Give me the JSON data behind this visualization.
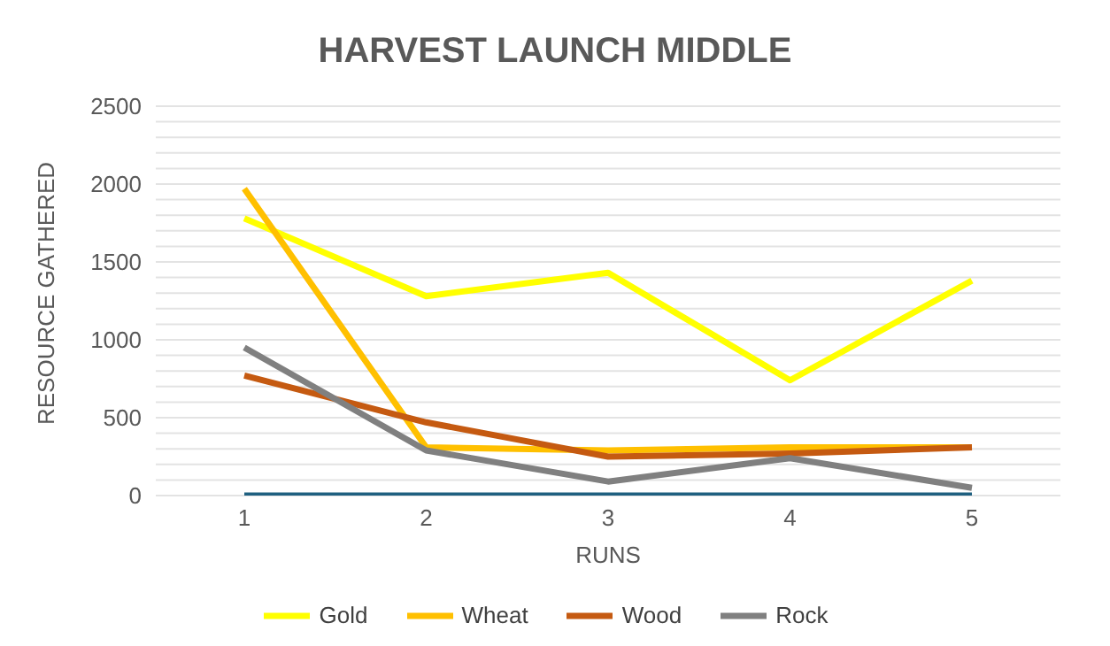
{
  "chart_data": {
    "type": "line",
    "title": "HARVEST LAUNCH MIDDLE",
    "xlabel": "RUNS",
    "ylabel": "RESOURCE GATHERED",
    "categories": [
      "1",
      "2",
      "3",
      "4",
      "5"
    ],
    "series": [
      {
        "name": "Gold",
        "color": "#ffff00",
        "values": [
          1780,
          1280,
          1430,
          740,
          1380
        ]
      },
      {
        "name": "Wheat",
        "color": "#ffc000",
        "values": [
          1970,
          310,
          290,
          310,
          310
        ]
      },
      {
        "name": "Wood",
        "color": "#c55a11",
        "values": [
          770,
          470,
          250,
          270,
          310
        ]
      },
      {
        "name": "Rock",
        "color": "#808080",
        "values": [
          950,
          290,
          90,
          240,
          50
        ]
      },
      {
        "color": "#1f6080",
        "values": [
          0,
          0,
          0,
          0,
          0
        ]
      }
    ],
    "ylim": [
      0,
      2500
    ],
    "yticks": [
      0,
      {
        "value": 100,
        "label": null
      },
      {
        "value": 200,
        "label": null
      },
      {
        "value": 300,
        "label": null
      },
      {
        "value": 400,
        "label": null
      },
      500,
      {
        "value": 600,
        "label": null
      },
      {
        "value": 700,
        "label": null
      },
      {
        "value": 800,
        "label": null
      },
      {
        "value": 900,
        "label": null
      },
      1000,
      {
        "value": 1100,
        "label": null
      },
      {
        "value": 1200,
        "label": null
      },
      {
        "value": 1300,
        "label": null
      },
      {
        "value": 1400,
        "label": null
      },
      1500,
      {
        "value": 1600,
        "label": null
      },
      {
        "value": 1700,
        "label": null
      },
      {
        "value": 1800,
        "label": null
      },
      {
        "value": 1900,
        "label": null
      },
      2000,
      {
        "value": 2100,
        "label": null
      },
      {
        "value": 2200,
        "label": null
      },
      {
        "value": 2300,
        "label": null
      },
      {
        "value": 2400,
        "label": null
      },
      2500
    ],
    "grid": "y",
    "legend": "bottom",
    "marker": "none",
    "line_style": "solid"
  }
}
